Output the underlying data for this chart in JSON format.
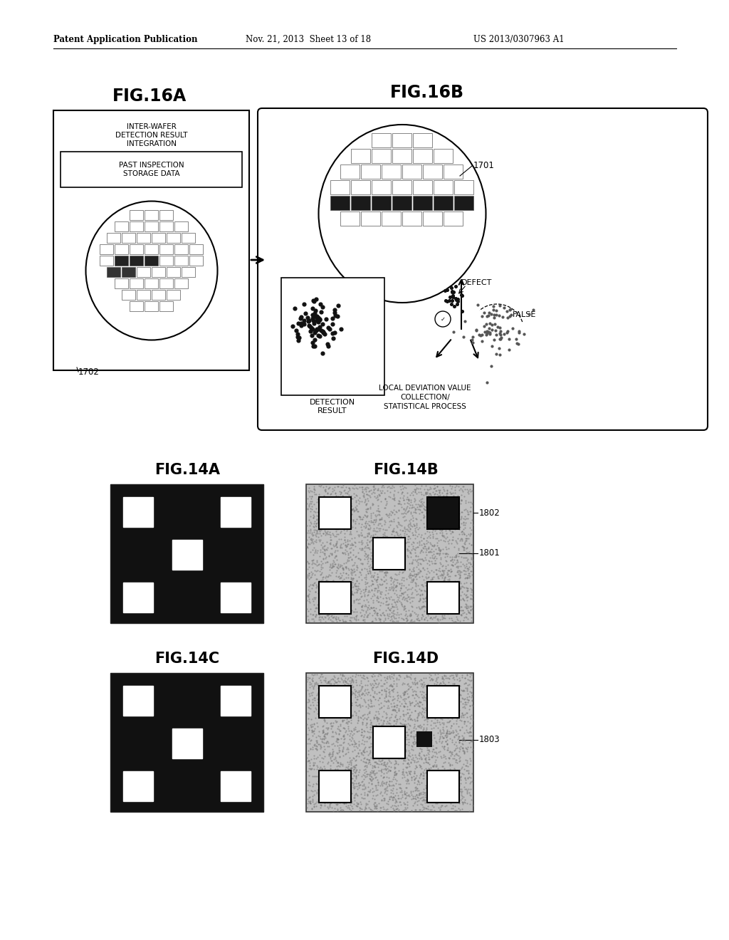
{
  "header_left": "Patent Application Publication",
  "header_mid": "Nov. 21, 2013  Sheet 13 of 18",
  "header_right": "US 2013/0307963 A1",
  "fig16a_title": "FIG.16A",
  "fig16b_title": "FIG.16B",
  "fig14a_title": "FIG.14A",
  "fig14b_title": "FIG.14B",
  "fig14c_title": "FIG.14C",
  "fig14d_title": "FIG.14D",
  "bg_color": "#ffffff",
  "text_color": "#000000"
}
